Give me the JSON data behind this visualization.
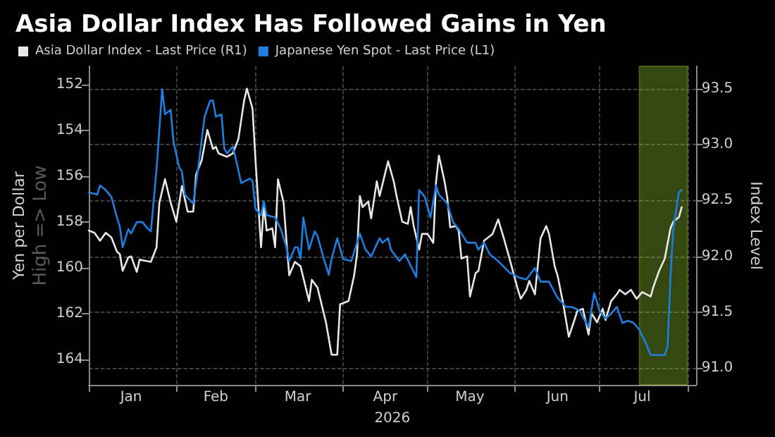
{
  "chart_data": {
    "type": "line",
    "title": "Asia Dollar Index Has Followed Gains in Yen",
    "xlabel": "2026",
    "ylabel": "Yen per Dollar",
    "y2label": "Index Level",
    "annotations": [
      "High => Low"
    ],
    "xlim": [
      "2026-01-01",
      "2026-08-04"
    ],
    "xticks": [
      {
        "value": "2026-01-01",
        "label": null
      },
      {
        "value": "2026-01-16",
        "label": "Jan"
      },
      {
        "value": "2026-02-01",
        "label": null
      },
      {
        "value": "2026-02-15",
        "label": "Feb"
      },
      {
        "value": "2026-03-01",
        "label": null
      },
      {
        "value": "2026-03-16",
        "label": "Mar"
      },
      {
        "value": "2026-04-01",
        "label": null
      },
      {
        "value": "2026-04-16",
        "label": "Apr"
      },
      {
        "value": "2026-05-01",
        "label": null
      },
      {
        "value": "2026-05-16",
        "label": "May"
      },
      {
        "value": "2026-06-01",
        "label": null
      },
      {
        "value": "2026-06-16",
        "label": "Jun"
      },
      {
        "value": "2026-07-01",
        "label": null
      },
      {
        "value": "2026-07-16",
        "label": "Jul"
      },
      {
        "value": "2026-08-01",
        "label": null
      }
    ],
    "ylim": [
      165.1,
      151.2
    ],
    "yticks": [
      152,
      154,
      156,
      158,
      160,
      162,
      164
    ],
    "y2lim": [
      90.85,
      93.7
    ],
    "y2ticks": [
      {
        "value": 91,
        "label": "91.0"
      },
      91.5,
      {
        "value": 92,
        "label": "92.0"
      },
      92.5,
      {
        "value": 93,
        "label": "93.0"
      },
      93.5
    ],
    "grid": true,
    "legend": "top left",
    "marker": "none",
    "line_style": "solid",
    "bands": [
      {
        "axis": "x",
        "from": "2026-07-15",
        "to": "2026-08-01",
        "color": "#9acd32"
      }
    ],
    "series": [
      {
        "name": "Asia Dollar Index - Last Price (R1)",
        "color": "#e8e8e8",
        "axis": "y2",
        "x": [
          "2026-01-01",
          "2026-01-03",
          "2026-01-05",
          "2026-01-07",
          "2026-01-09",
          "2026-01-11",
          "2026-01-12",
          "2026-01-13",
          "2026-01-15",
          "2026-01-16",
          "2026-01-18",
          "2026-01-19",
          "2026-01-21",
          "2026-01-23",
          "2026-01-25",
          "2026-01-26",
          "2026-01-28",
          "2026-01-30",
          "2026-02-01",
          "2026-02-03",
          "2026-02-05",
          "2026-02-07",
          "2026-02-08",
          "2026-02-10",
          "2026-02-12",
          "2026-02-14",
          "2026-02-15",
          "2026-02-16",
          "2026-02-19",
          "2026-02-21",
          "2026-02-23",
          "2026-02-25",
          "2026-02-26",
          "2026-02-28",
          "2026-03-01",
          "2026-03-03",
          "2026-03-04",
          "2026-03-05",
          "2026-03-07",
          "2026-03-08",
          "2026-03-09",
          "2026-03-11",
          "2026-03-12",
          "2026-03-13",
          "2026-03-15",
          "2026-03-17",
          "2026-03-20",
          "2026-03-21",
          "2026-03-23",
          "2026-03-26",
          "2026-03-28",
          "2026-03-30",
          "2026-03-31",
          "2026-04-03",
          "2026-04-05",
          "2026-04-06",
          "2026-04-07",
          "2026-04-08",
          "2026-04-10",
          "2026-04-11",
          "2026-04-13",
          "2026-04-14",
          "2026-04-17",
          "2026-04-19",
          "2026-04-20",
          "2026-04-22",
          "2026-04-24",
          "2026-04-25",
          "2026-04-26",
          "2026-04-28",
          "2026-04-29",
          "2026-05-01",
          "2026-05-03",
          "2026-05-04",
          "2026-05-05",
          "2026-05-07",
          "2026-05-08",
          "2026-05-09",
          "2026-05-11",
          "2026-05-12",
          "2026-05-13",
          "2026-05-15",
          "2026-05-16",
          "2026-05-18",
          "2026-05-19",
          "2026-05-21",
          "2026-05-24",
          "2026-05-26",
          "2026-05-28",
          "2026-05-30",
          "2026-06-02",
          "2026-06-03",
          "2026-06-05",
          "2026-06-06",
          "2026-06-08",
          "2026-06-10",
          "2026-06-12",
          "2026-06-13",
          "2026-06-15",
          "2026-06-16",
          "2026-06-18",
          "2026-06-20",
          "2026-06-22",
          "2026-06-23",
          "2026-06-25",
          "2026-06-27",
          "2026-06-28",
          "2026-06-30",
          "2026-07-02",
          "2026-07-03",
          "2026-07-05",
          "2026-07-07",
          "2026-07-08",
          "2026-07-10",
          "2026-07-12",
          "2026-07-14",
          "2026-07-16",
          "2026-07-19",
          "2026-07-20",
          "2026-07-22",
          "2026-07-24",
          "2026-07-26",
          "2026-07-27",
          "2026-07-29",
          "2026-07-30"
        ],
        "values": [
          92.23,
          92.21,
          92.14,
          92.21,
          92.17,
          92.04,
          92.02,
          91.87,
          91.99,
          92.0,
          91.86,
          91.97,
          91.96,
          91.95,
          92.08,
          92.48,
          92.69,
          92.48,
          92.31,
          92.63,
          92.4,
          92.4,
          92.73,
          92.86,
          93.13,
          92.96,
          92.98,
          92.92,
          92.89,
          92.92,
          93.05,
          93.39,
          93.5,
          93.32,
          92.88,
          92.08,
          92.46,
          92.23,
          92.25,
          92.08,
          92.69,
          92.48,
          92.14,
          91.83,
          91.95,
          91.91,
          91.6,
          91.79,
          91.72,
          91.41,
          91.12,
          91.12,
          91.57,
          91.6,
          91.83,
          92.02,
          92.54,
          92.44,
          92.49,
          92.34,
          92.67,
          92.54,
          92.85,
          92.67,
          92.54,
          92.31,
          92.29,
          92.44,
          92.28,
          92.06,
          92.2,
          92.2,
          92.12,
          92.67,
          92.9,
          92.67,
          92.52,
          92.26,
          92.27,
          92.23,
          91.98,
          92.0,
          91.64,
          91.85,
          91.87,
          92.14,
          92.2,
          92.33,
          92.16,
          91.98,
          91.7,
          91.62,
          91.7,
          91.78,
          91.66,
          92.16,
          92.27,
          92.2,
          91.91,
          91.83,
          91.58,
          91.28,
          91.43,
          91.51,
          91.53,
          91.3,
          91.49,
          91.41,
          91.53,
          91.43,
          91.6,
          91.66,
          91.7,
          91.66,
          91.7,
          91.62,
          91.68,
          91.64,
          91.73,
          91.87,
          91.98,
          92.25,
          92.31,
          92.35,
          92.44
        ]
      },
      {
        "name": "Japanese Yen Spot - Last Price (L1)",
        "color": "#1f7fe0",
        "x": [
          "2026-01-01",
          "2026-01-04",
          "2026-01-05",
          "2026-01-07",
          "2026-01-09",
          "2026-01-11",
          "2026-01-12",
          "2026-01-13",
          "2026-01-15",
          "2026-01-16",
          "2026-01-18",
          "2026-01-20",
          "2026-01-22",
          "2026-01-23",
          "2026-01-25",
          "2026-01-27",
          "2026-01-28",
          "2026-01-30",
          "2026-01-31",
          "2026-02-02",
          "2026-02-03",
          "2026-02-04",
          "2026-02-07",
          "2026-02-09",
          "2026-02-11",
          "2026-02-13",
          "2026-02-14",
          "2026-02-15",
          "2026-02-17",
          "2026-02-18",
          "2026-02-19",
          "2026-02-21",
          "2026-02-22",
          "2026-02-24",
          "2026-02-27",
          "2026-02-28",
          "2026-03-01",
          "2026-03-03",
          "2026-03-04",
          "2026-03-05",
          "2026-03-08",
          "2026-03-10",
          "2026-03-12",
          "2026-03-13",
          "2026-03-15",
          "2026-03-16",
          "2026-03-17",
          "2026-03-18",
          "2026-03-20",
          "2026-03-22",
          "2026-03-23",
          "2026-03-25",
          "2026-03-27",
          "2026-03-28",
          "2026-03-30",
          "2026-04-01",
          "2026-04-04",
          "2026-04-07",
          "2026-04-09",
          "2026-04-11",
          "2026-04-14",
          "2026-04-15",
          "2026-04-17",
          "2026-04-18",
          "2026-04-21",
          "2026-04-23",
          "2026-04-27",
          "2026-04-28",
          "2026-04-30",
          "2026-05-02",
          "2026-05-04",
          "2026-05-05",
          "2026-05-08",
          "2026-05-10",
          "2026-05-12",
          "2026-05-15",
          "2026-05-18",
          "2026-05-19",
          "2026-05-21",
          "2026-05-23",
          "2026-05-26",
          "2026-05-30",
          "2026-06-02",
          "2026-06-05",
          "2026-06-08",
          "2026-06-10",
          "2026-06-13",
          "2026-06-16",
          "2026-06-19",
          "2026-06-21",
          "2026-06-23",
          "2026-06-24",
          "2026-06-27",
          "2026-06-29",
          "2026-07-01",
          "2026-07-03",
          "2026-07-05",
          "2026-07-07",
          "2026-07-09",
          "2026-07-11",
          "2026-07-13",
          "2026-07-15",
          "2026-07-17",
          "2026-07-19",
          "2026-07-22",
          "2026-07-24",
          "2026-07-25",
          "2026-07-26",
          "2026-07-27",
          "2026-07-29",
          "2026-07-30"
        ],
        "values": [
          156.7,
          156.8,
          156.4,
          156.6,
          156.9,
          157.8,
          158.2,
          159.1,
          158.3,
          158.5,
          158.0,
          158.0,
          158.3,
          158.4,
          155.7,
          152.2,
          153.3,
          153.1,
          154.5,
          155.6,
          155.8,
          156.8,
          157.2,
          155.4,
          153.4,
          152.7,
          152.7,
          153.4,
          153.3,
          154.8,
          155.0,
          154.7,
          155.2,
          156.3,
          156.1,
          156.2,
          157.4,
          157.7,
          157.1,
          157.7,
          157.8,
          158.3,
          159.1,
          159.7,
          159.1,
          159.1,
          159.6,
          157.8,
          159.2,
          158.4,
          158.6,
          159.5,
          160.3,
          159.6,
          158.7,
          159.6,
          159.7,
          158.5,
          159.2,
          159.5,
          158.7,
          158.9,
          158.7,
          159.2,
          159.7,
          159.4,
          160.4,
          156.6,
          156.9,
          157.8,
          156.4,
          156.8,
          157.2,
          158.0,
          158.3,
          158.9,
          158.9,
          159.2,
          158.9,
          159.4,
          159.7,
          160.2,
          160.4,
          160.5,
          160.0,
          160.6,
          160.6,
          161.3,
          161.7,
          161.7,
          161.8,
          161.9,
          162.6,
          161.1,
          161.9,
          162.2,
          162.0,
          161.7,
          162.4,
          162.3,
          162.4,
          162.7,
          163.2,
          163.8,
          163.8,
          163.8,
          163.4,
          160.4,
          158.3,
          156.7,
          156.6
        ]
      }
    ]
  }
}
